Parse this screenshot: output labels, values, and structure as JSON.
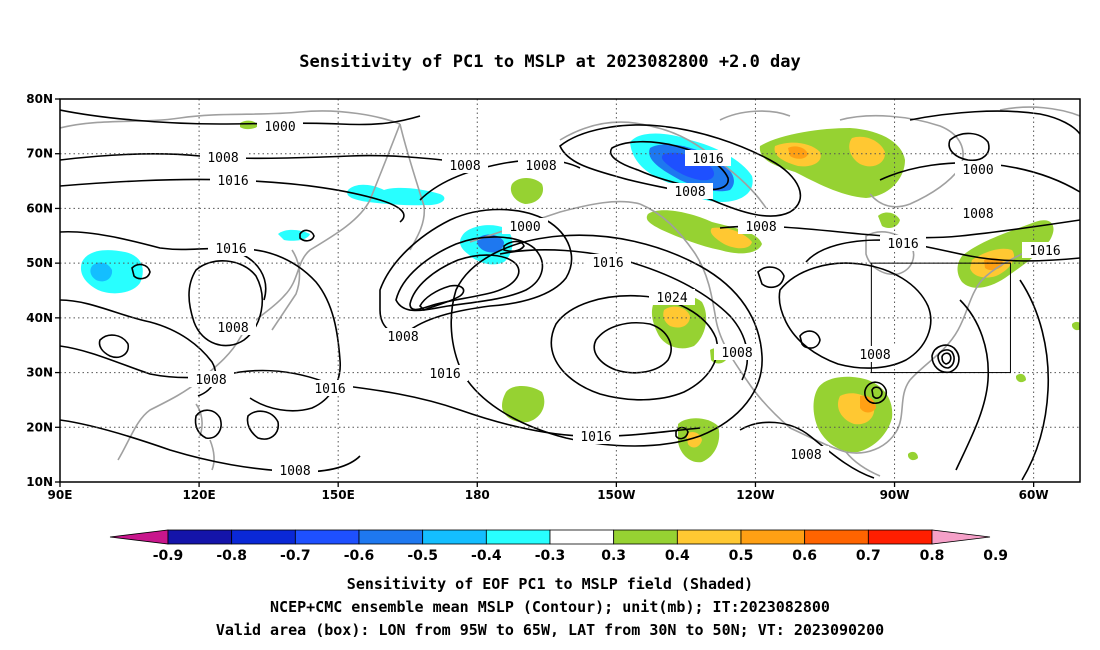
{
  "title": "Sensitivity of PC1 to MSLP at 2023082800 +2.0 day",
  "map": {
    "lon_labels": [
      "90E",
      "120E",
      "150E",
      "180",
      "150W",
      "120W",
      "90W",
      "60W"
    ],
    "lat_labels": [
      "80N",
      "70N",
      "60N",
      "50N",
      "40N",
      "30N",
      "20N",
      "10N"
    ],
    "lon_range": [
      90,
      310
    ],
    "lat_range": [
      10,
      80
    ],
    "gridlines": "dotted",
    "valid_box": {
      "lon": [
        265,
        295
      ],
      "lat": [
        30,
        50
      ]
    }
  },
  "contour_labels": [
    "1000",
    "1008",
    "1016",
    "1008",
    "1008",
    "1016",
    "1000",
    "1016",
    "1024",
    "1008",
    "1016",
    "1008",
    "1008",
    "1016",
    "1008",
    "1008",
    "1016",
    "1008",
    "1016",
    "1000",
    "1008",
    "1016",
    "1008",
    "1008"
  ],
  "colorbar": {
    "ticks": [
      "-0.9",
      "-0.8",
      "-0.7",
      "-0.6",
      "-0.5",
      "-0.4",
      "-0.3",
      "0.3",
      "0.4",
      "0.5",
      "0.6",
      "0.7",
      "0.8",
      "0.9"
    ],
    "colors": [
      "#c8168c",
      "#1414aa",
      "#0a28d6",
      "#1e50ff",
      "#1e78f0",
      "#14beff",
      "#28ffff",
      "#ffffff",
      "#96d232",
      "#ffc832",
      "#ffa014",
      "#ff6400",
      "#ff1e00",
      "#f5a0c8"
    ]
  },
  "footer": [
    "Sensitivity of EOF PC1 to MSLP field (Shaded)",
    "NCEP+CMC ensemble mean MSLP (Contour); unit(mb); IT:2023082800",
    "Valid area (box): LON from 95W to 65W, LAT from 30N to 50N; VT: 2023090200"
  ]
}
